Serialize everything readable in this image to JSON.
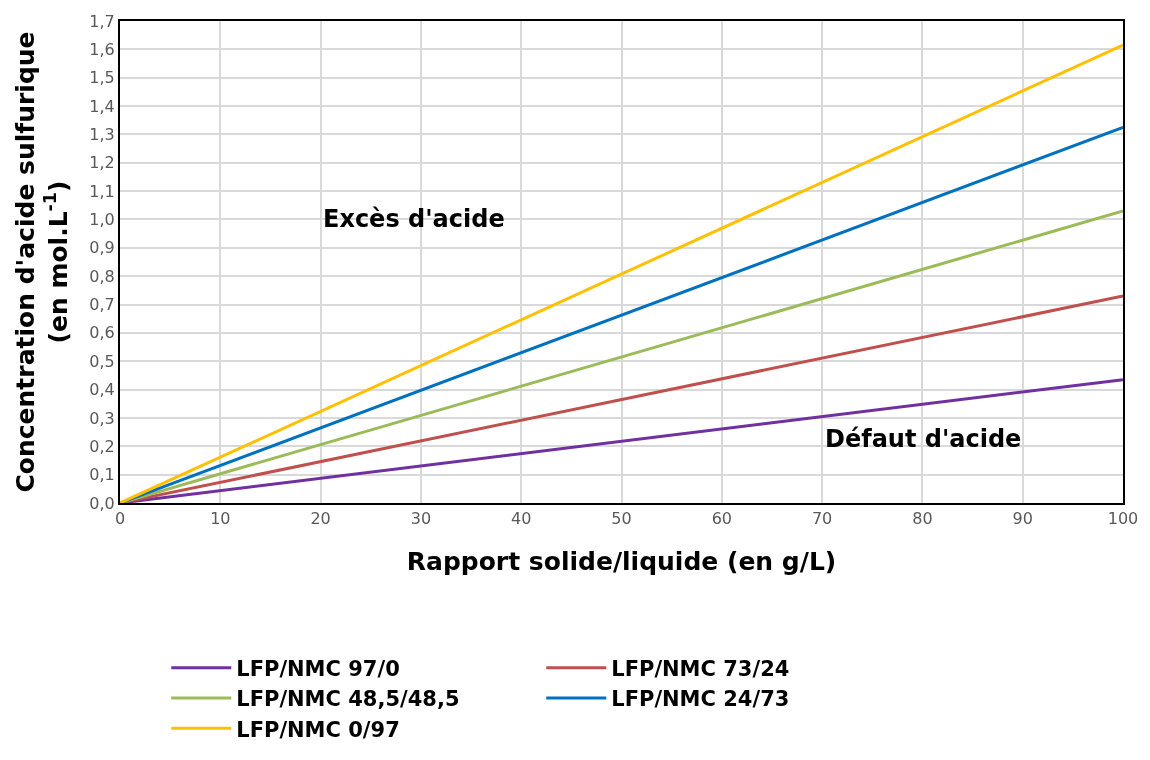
{
  "chart_data": {
    "type": "line",
    "xlabel": "Rapport solide/liquide (en g/L)",
    "ylabel": "Concentration d'acide sulfurique\n(en mol.L$^{-1}$)",
    "x": [
      0,
      100
    ],
    "series": [
      {
        "name": "LFP/NMC 97/0",
        "color": "#7030a0",
        "values": [
          0,
          0.435
        ]
      },
      {
        "name": "LFP/NMC 73/24",
        "color": "#c0504d",
        "values": [
          0,
          0.73
        ]
      },
      {
        "name": "LFP/NMC 48,5/48,5",
        "color": "#9bbb59",
        "values": [
          0,
          1.03
        ]
      },
      {
        "name": "LFP/NMC 24/73",
        "color": "#0070c0",
        "values": [
          0,
          1.325
        ]
      },
      {
        "name": "LFP/NMC 0/97",
        "color": "#ffc000",
        "values": [
          0,
          1.615
        ]
      }
    ],
    "xlim": [
      0,
      100
    ],
    "xticks": [
      0,
      10,
      20,
      30,
      40,
      50,
      60,
      70,
      80,
      90,
      100
    ],
    "ylim": [
      0,
      1.7
    ],
    "yticks": [
      {
        "value": 0,
        "label": "0,0"
      },
      {
        "value": 0.1,
        "label": "0,1"
      },
      {
        "value": 0.2,
        "label": "0,2"
      },
      {
        "value": 0.3,
        "label": "0,3"
      },
      {
        "value": 0.4,
        "label": "0,4"
      },
      {
        "value": 0.5,
        "label": "0,5"
      },
      {
        "value": 0.6,
        "label": "0,6"
      },
      {
        "value": 0.7,
        "label": "0,7"
      },
      {
        "value": 0.8,
        "label": "0,8"
      },
      {
        "value": 0.9,
        "label": "0,9"
      },
      {
        "value": 1.0,
        "label": "1,0"
      },
      {
        "value": 1.1,
        "label": "1,1"
      },
      {
        "value": 1.2,
        "label": "1,2"
      },
      {
        "value": 1.3,
        "label": "1,3"
      },
      {
        "value": 1.4,
        "label": "1,4"
      },
      {
        "value": 1.5,
        "label": "1,5"
      },
      {
        "value": 1.6,
        "label": "1,6"
      },
      {
        "value": 1.7,
        "label": "1,7"
      }
    ],
    "annotations": [
      "Excès d'acide",
      "Défaut d'acide"
    ],
    "grid": true,
    "legend": "bottom",
    "marker": "none",
    "line_style": "solid"
  }
}
